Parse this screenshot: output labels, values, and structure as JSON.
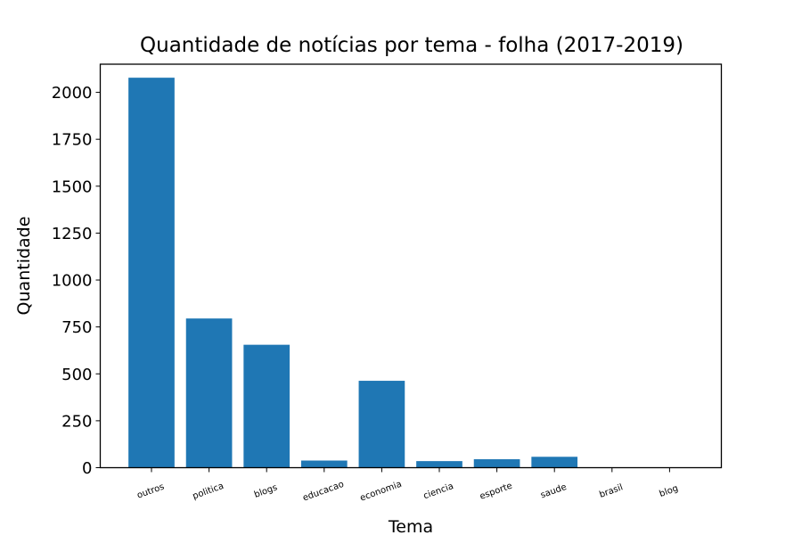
{
  "chart_data": {
    "type": "bar",
    "title": "Quantidade de notícias por tema - folha (2017-2019)",
    "xlabel": "Tema",
    "ylabel": "Quantidade",
    "categories": [
      "outros",
      "politica",
      "blogs",
      "educacao",
      "economia",
      "ciencia",
      "esporte",
      "saude",
      "brasil",
      "blog"
    ],
    "values": [
      2078,
      795,
      655,
      38,
      463,
      35,
      45,
      58,
      0,
      0
    ],
    "ylim": [
      0,
      2150
    ],
    "yticks": [
      0,
      250,
      500,
      750,
      1000,
      1250,
      1500,
      1750,
      2000
    ],
    "bar_color": "#1f77b4",
    "grid": false
  }
}
